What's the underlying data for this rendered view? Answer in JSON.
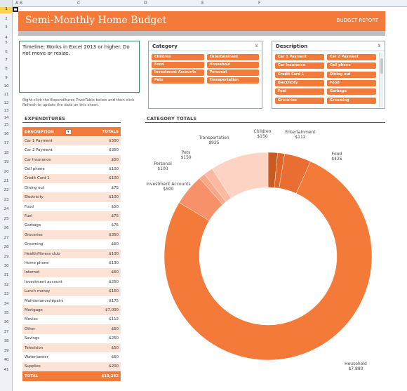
{
  "sheet": {
    "columns": [
      "A",
      "B",
      "C",
      "D",
      "E",
      "F"
    ],
    "rows": [
      "1",
      "2",
      "3",
      "4",
      "5",
      "6",
      "7",
      "8",
      "9",
      "10",
      "11",
      "12",
      "13",
      "14",
      "15",
      "16",
      "17",
      "18",
      "19",
      "20",
      "21",
      "22",
      "23",
      "24",
      "25",
      "26",
      "27",
      "28",
      "29",
      "30",
      "31",
      "32",
      "33",
      "34",
      "35",
      "36",
      "37",
      "38",
      "39",
      "40",
      "41"
    ]
  },
  "banner": {
    "title": "Semi-Monthly Home Budget",
    "right_label": "BUDGET REPORT",
    "accent": "#f47a3a"
  },
  "timeline": {
    "message": "Timeline: Works in Excel 2013 or higher. Do not move or resize."
  },
  "category_slicer": {
    "title": "Category",
    "clear_icon": "filter-clear-icon",
    "items": [
      "Children",
      "Entertainment",
      "Food",
      "Household",
      "Investment Accounts",
      "Personal",
      "Pets",
      "Transportation"
    ]
  },
  "description_slicer": {
    "title": "Description",
    "clear_icon": "filter-clear-icon",
    "items": [
      "Car 1 Payment",
      "Car 2 Payment",
      "Car Insurance",
      "Cell phone",
      "Credit Card 1",
      "Dining out",
      "Electricity",
      "Food",
      "Fuel",
      "Garbage",
      "Groceries",
      "Grooming"
    ]
  },
  "instructions": {
    "text": "Right-click the Expenditures PivotTable below and then click Refresh to update the data on this sheet."
  },
  "expenditures": {
    "section_title": "EXPENDITURES",
    "col_description": "DESCRIPTION",
    "col_totals": "TOTALS",
    "rows": [
      {
        "desc": "Car 1 Payment",
        "total": "$300"
      },
      {
        "desc": "Car 2 Payment",
        "total": "$350"
      },
      {
        "desc": "Car Insurance",
        "total": "$50"
      },
      {
        "desc": "Cell phone",
        "total": "$100"
      },
      {
        "desc": "Credit Card 1",
        "total": "$100"
      },
      {
        "desc": "Dining out",
        "total": "$75"
      },
      {
        "desc": "Electricity",
        "total": "$100"
      },
      {
        "desc": "Food",
        "total": "$50"
      },
      {
        "desc": "Fuel",
        "total": "$75"
      },
      {
        "desc": "Garbage",
        "total": "$75"
      },
      {
        "desc": "Groceries",
        "total": "$350"
      },
      {
        "desc": "Grooming",
        "total": "$50"
      },
      {
        "desc": "Health/fitness club",
        "total": "$100"
      },
      {
        "desc": "Home phone",
        "total": "$130"
      },
      {
        "desc": "Internet",
        "total": "$50"
      },
      {
        "desc": "Investment account",
        "total": "$250"
      },
      {
        "desc": "Lunch money",
        "total": "$150"
      },
      {
        "desc": "Maintenance/repairs",
        "total": "$175"
      },
      {
        "desc": "Mortgage",
        "total": "$7,000"
      },
      {
        "desc": "Movies",
        "total": "$112"
      },
      {
        "desc": "Other",
        "total": "$50"
      },
      {
        "desc": "Savings",
        "total": "$250"
      },
      {
        "desc": "Television",
        "total": "$50"
      },
      {
        "desc": "Water/sewer",
        "total": "$50"
      },
      {
        "desc": "Supplies",
        "total": "$200"
      }
    ],
    "total_label": "TOTAL",
    "total_value": "$10,242"
  },
  "category_totals": {
    "section_title": "CATEGORY TOTALS"
  },
  "chart_data": {
    "type": "pie",
    "variant": "doughnut",
    "title": "",
    "slices": [
      {
        "name": "Children",
        "value": 150,
        "label": "$150",
        "color": "#c85a22"
      },
      {
        "name": "Entertainment",
        "value": 112,
        "label": "$112",
        "color": "#e0652a"
      },
      {
        "name": "Food",
        "value": 425,
        "label": "$425",
        "color": "#ea6e32"
      },
      {
        "name": "Household",
        "value": 7880,
        "label": "$7,880",
        "color": "#f47a3a"
      },
      {
        "name": "Investment Accounts",
        "value": 500,
        "label": "$500",
        "color": "#f6916a"
      },
      {
        "name": "Personal",
        "value": 100,
        "label": "$100",
        "color": "#f9a88a"
      },
      {
        "name": "Pets",
        "value": 150,
        "label": "$150",
        "color": "#fbbba3"
      },
      {
        "name": "Transportation",
        "value": 925,
        "label": "$925",
        "color": "#fdd3c3"
      }
    ]
  }
}
